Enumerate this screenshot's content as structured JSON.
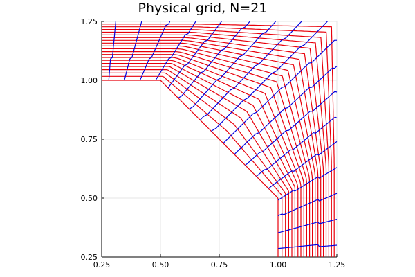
{
  "chart_data": {
    "type": "line",
    "title": "Physical grid, N=21",
    "xlabel": "",
    "ylabel": "",
    "xlim": [
      0.25,
      1.25
    ],
    "ylim": [
      0.25,
      1.25
    ],
    "aspect": "equal",
    "grid": true,
    "legend": false,
    "xticks": [
      "0.25",
      "0.50",
      "0.75",
      "1.00",
      "1.25"
    ],
    "yticks": [
      "0.25",
      "0.50",
      "0.75",
      "1.00",
      "1.25"
    ],
    "colors": {
      "red_family": "#e8000b",
      "blue_family": "#0000e0"
    },
    "boundary": {
      "inner": [
        [
          0.25,
          1.0
        ],
        [
          0.5,
          1.0
        ],
        [
          1.0,
          0.5
        ],
        [
          1.0,
          0.25
        ]
      ],
      "outer": [
        [
          0.25,
          1.25
        ],
        [
          1.25,
          1.25
        ],
        [
          1.25,
          0.25
        ]
      ]
    },
    "series": [
      {
        "color": "#e8000b",
        "note_family": "curves_along_corner",
        "offsets": [
          0.0125,
          0.025,
          0.0375,
          0.05,
          0.0625,
          0.075,
          0.0875,
          0.1,
          0.1125,
          0.125,
          0.1375,
          0.15,
          0.1625,
          0.175,
          0.1875,
          0.2,
          0.2125,
          0.225,
          0.2375
        ]
      },
      {
        "color": "#0000e0",
        "note_family": "transverse_curves",
        "count": 18
      }
    ]
  }
}
